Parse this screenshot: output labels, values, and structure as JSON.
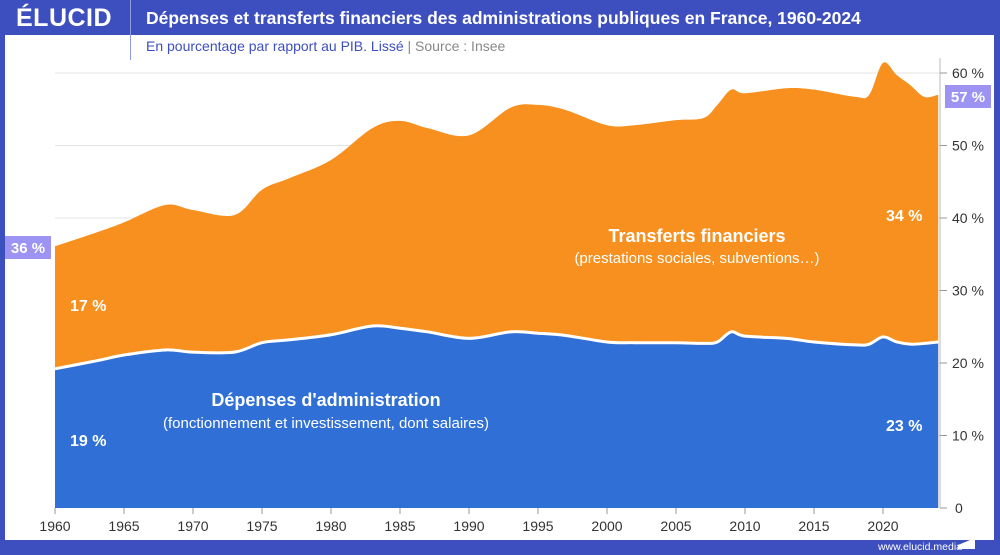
{
  "header": {
    "logo": "ÉLUCID",
    "title": "Dépenses et transferts financiers des administrations publiques en France, 1960-2024",
    "subtitle": "En pourcentage par rapport au PIB. Lissé",
    "separator": "|",
    "source": "Source : Insee"
  },
  "footer": {
    "url": "www.elucid.media"
  },
  "colors": {
    "frame": "#3d4fbf",
    "depenses": "#2f6fd6",
    "transferts": "#f7901e",
    "badge": "#9d93f2"
  },
  "chart_data": {
    "type": "area",
    "stacked": true,
    "xlim": [
      1960,
      2024
    ],
    "ylim": [
      0,
      60
    ],
    "grid": true,
    "y_axis_side": "right",
    "x_ticks": [
      "1960",
      "1965",
      "1970",
      "1975",
      "1980",
      "1985",
      "1990",
      "1995",
      "2000",
      "2005",
      "2010",
      "2015",
      "2020"
    ],
    "y_ticks": [
      "0",
      "10 %",
      "20 %",
      "30 %",
      "40 %",
      "50 %",
      "60 %"
    ],
    "x": [
      1960,
      1963,
      1965,
      1968,
      1970,
      1973,
      1975,
      1977,
      1980,
      1983,
      1985,
      1987,
      1990,
      1993,
      1995,
      1997,
      2000,
      2002,
      2005,
      2007,
      2008,
      2009,
      2010,
      2013,
      2015,
      2018,
      2019,
      2020,
      2021,
      2022,
      2023,
      2024
    ],
    "series": [
      {
        "name": "Dépenses d'administration",
        "subname": "(fonctionnement et investissement, dont salaires)",
        "values": [
          19.2,
          20.3,
          21.1,
          21.8,
          21.5,
          21.5,
          22.8,
          23.2,
          23.9,
          25.1,
          24.8,
          24.3,
          23.4,
          24.3,
          24.1,
          23.8,
          22.9,
          22.8,
          22.8,
          22.7,
          22.9,
          24.3,
          23.7,
          23.4,
          22.9,
          22.5,
          22.6,
          23.6,
          22.9,
          22.6,
          22.7,
          22.9
        ]
      },
      {
        "name": "Transferts financiers",
        "subname": "(prestations sociales, subventions…)",
        "values": [
          16.9,
          17.7,
          18.3,
          20.0,
          19.6,
          18.9,
          21.1,
          22.3,
          24.1,
          27.3,
          28.6,
          28.1,
          28.0,
          30.9,
          31.5,
          31.1,
          29.9,
          30.0,
          30.7,
          31.1,
          32.7,
          33.4,
          33.5,
          34.5,
          34.8,
          34.2,
          34.4,
          37.8,
          36.8,
          35.7,
          34.0,
          34.1
        ]
      }
    ],
    "annotations": {
      "depenses_start": "19 %",
      "depenses_end": "23 %",
      "transferts_start": "17 %",
      "transferts_end": "34 %",
      "total_start": "36 %",
      "total_end": "57 %"
    }
  }
}
